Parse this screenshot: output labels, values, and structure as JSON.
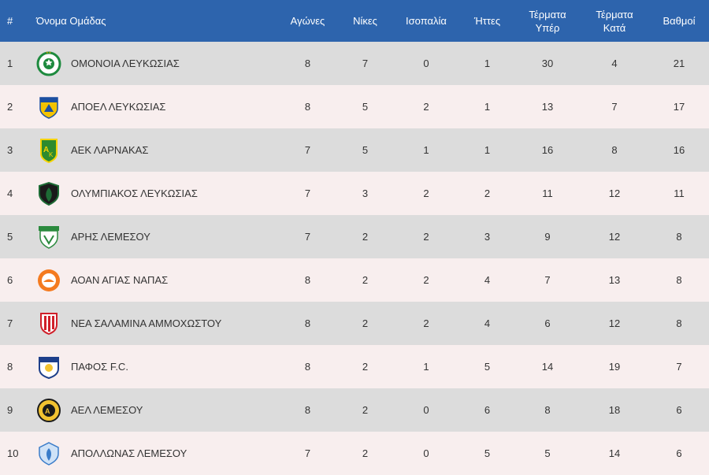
{
  "headers": {
    "pos": "#",
    "team": "Όνομα Ομάδας",
    "played": "Αγώνες",
    "wins": "Νίκες",
    "draws": "Ισοπαλία",
    "losses": "Ήττες",
    "goals_for_1": "Τέρματα",
    "goals_for_2": "Υπέρ",
    "goals_against_1": "Τέρματα",
    "goals_against_2": "Κατά",
    "points": "Βαθμοί"
  },
  "rows": [
    {
      "pos": "1",
      "team": "ΟΜΟΝΟΙΑ ΛΕΥΚΩΣΙΑΣ",
      "played": "8",
      "wins": "7",
      "draws": "0",
      "losses": "1",
      "gf": "30",
      "ga": "4",
      "pts": "21",
      "crest_icon": "omonoia-crest-icon"
    },
    {
      "pos": "2",
      "team": "ΑΠΟΕΛ ΛΕΥΚΩΣΙΑΣ",
      "played": "8",
      "wins": "5",
      "draws": "2",
      "losses": "1",
      "gf": "13",
      "ga": "7",
      "pts": "17",
      "crest_icon": "apoel-crest-icon"
    },
    {
      "pos": "3",
      "team": "ΑΕΚ ΛΑΡΝΑΚΑΣ",
      "played": "7",
      "wins": "5",
      "draws": "1",
      "losses": "1",
      "gf": "16",
      "ga": "8",
      "pts": "16",
      "crest_icon": "aek-crest-icon"
    },
    {
      "pos": "4",
      "team": "ΟΛΥΜΠΙΑΚΟΣ ΛΕΥΚΩΣΙΑΣ",
      "played": "7",
      "wins": "3",
      "draws": "2",
      "losses": "2",
      "gf": "11",
      "ga": "12",
      "pts": "11",
      "crest_icon": "olympiakos-crest-icon"
    },
    {
      "pos": "5",
      "team": "ΑΡΗΣ ΛΕΜΕΣΟΥ",
      "played": "7",
      "wins": "2",
      "draws": "2",
      "losses": "3",
      "gf": "9",
      "ga": "12",
      "pts": "8",
      "crest_icon": "aris-crest-icon"
    },
    {
      "pos": "6",
      "team": "ΑΟΑΝ ΑΓΙΑΣ ΝΑΠΑΣ",
      "played": "8",
      "wins": "2",
      "draws": "2",
      "losses": "4",
      "gf": "7",
      "ga": "13",
      "pts": "8",
      "crest_icon": "aoan-crest-icon"
    },
    {
      "pos": "7",
      "team": "ΝΕΑ ΣΑΛΑΜΙΝΑ ΑΜΜΟΧΩΣΤΟΥ",
      "played": "8",
      "wins": "2",
      "draws": "2",
      "losses": "4",
      "gf": "6",
      "ga": "12",
      "pts": "8",
      "crest_icon": "nea-salamina-crest-icon"
    },
    {
      "pos": "8",
      "team": "ΠΑΦΟΣ F.C.",
      "played": "8",
      "wins": "2",
      "draws": "1",
      "losses": "5",
      "gf": "14",
      "ga": "19",
      "pts": "7",
      "crest_icon": "pafos-crest-icon"
    },
    {
      "pos": "9",
      "team": "ΑΕΛ ΛΕΜΕΣΟΥ",
      "played": "8",
      "wins": "2",
      "draws": "0",
      "losses": "6",
      "gf": "8",
      "ga": "18",
      "pts": "6",
      "crest_icon": "ael-crest-icon"
    },
    {
      "pos": "10",
      "team": "ΑΠΟΛΛΩΝΑΣ ΛΕΜΕΣΟΥ",
      "played": "7",
      "wins": "2",
      "draws": "0",
      "losses": "5",
      "gf": "5",
      "ga": "14",
      "pts": "6",
      "crest_icon": "apollon-crest-icon"
    }
  ],
  "colors": {
    "header_bg": "#2d64ad",
    "row_odd": "#dcdcdc",
    "row_even": "#f8eeee"
  }
}
